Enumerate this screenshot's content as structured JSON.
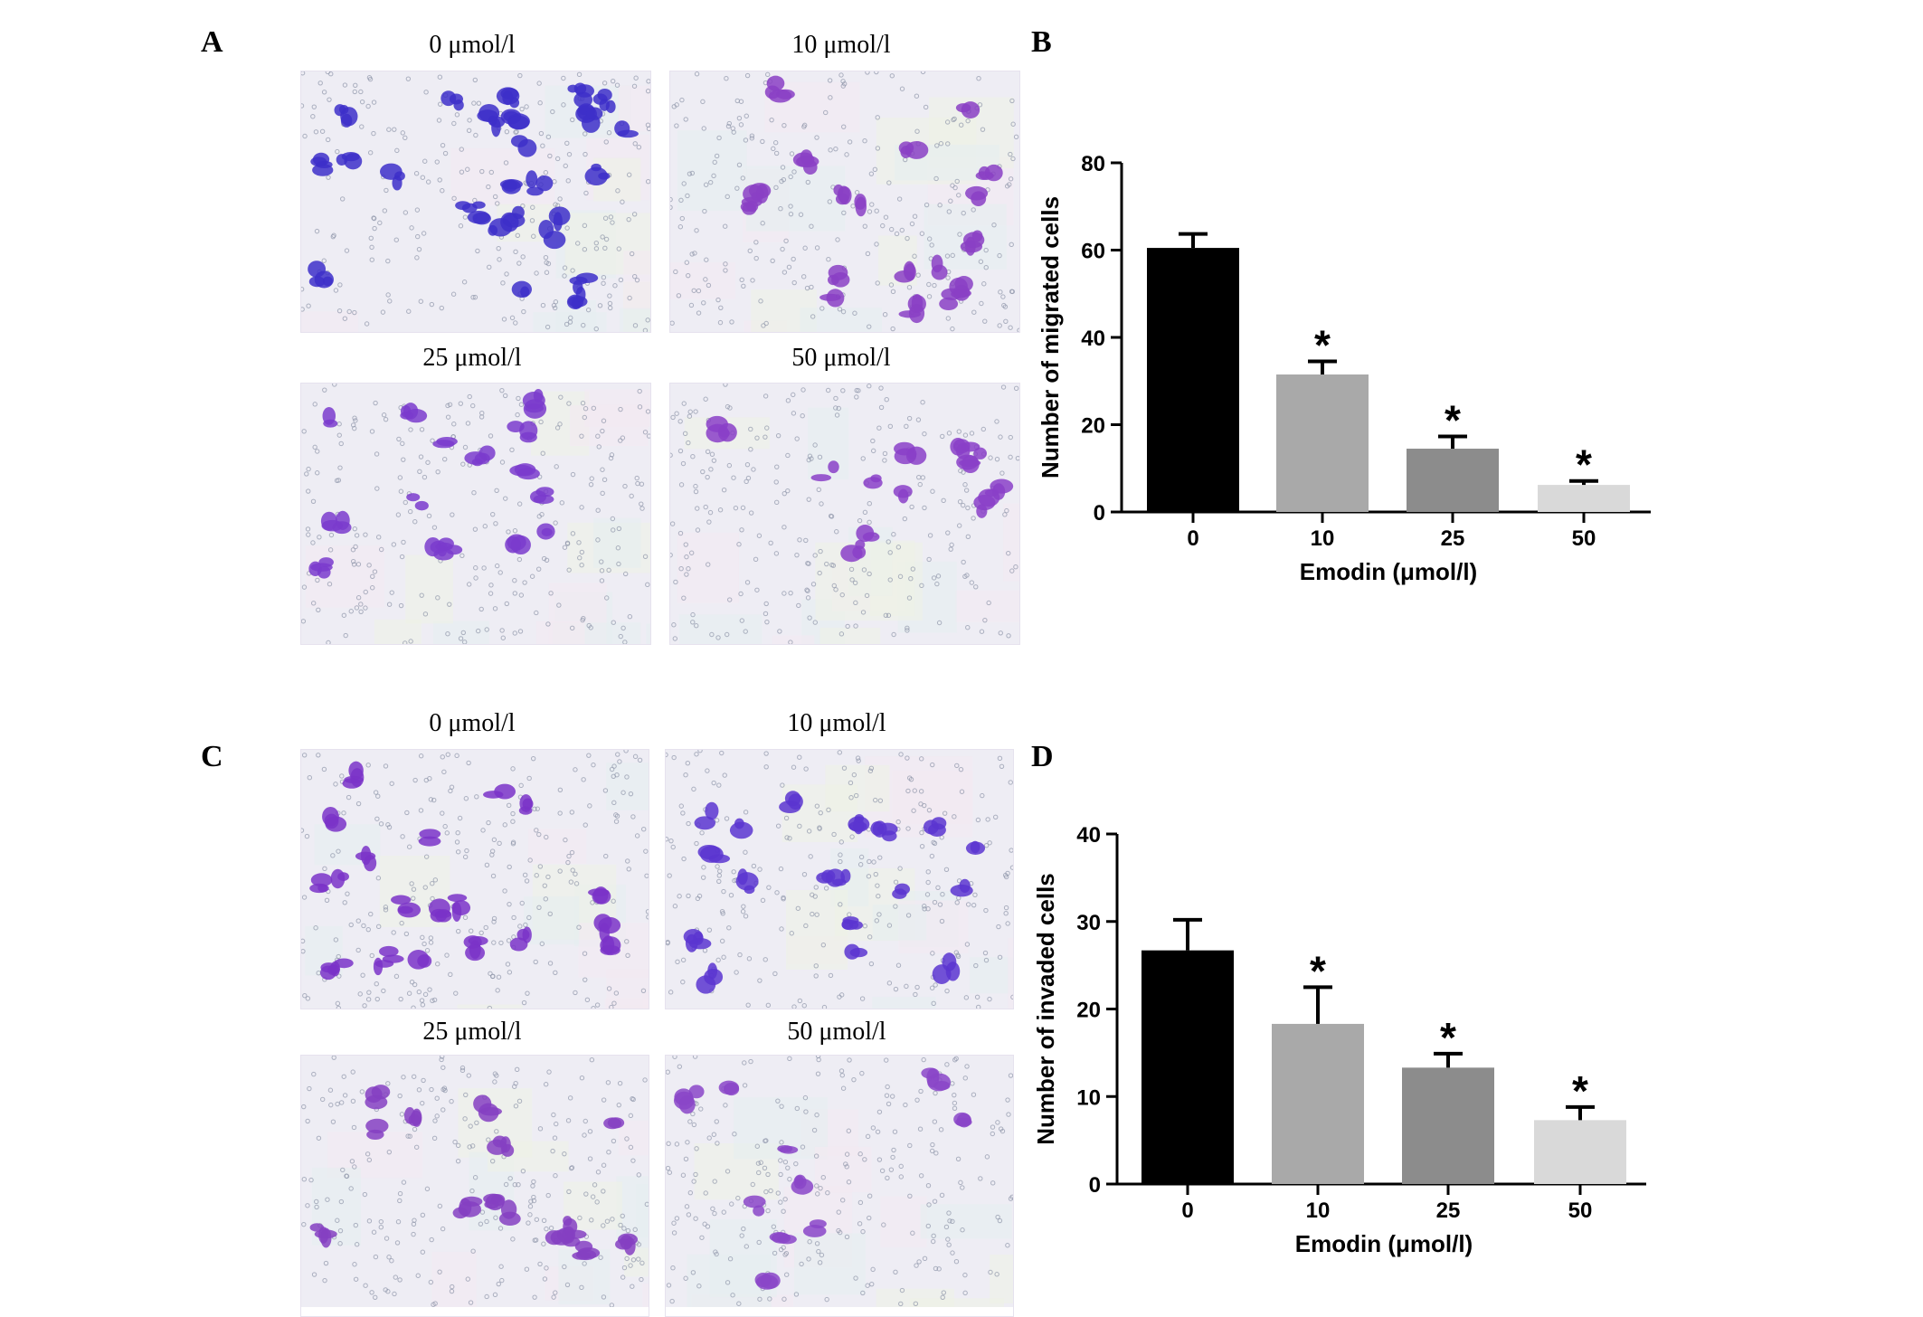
{
  "panel_letters": {
    "a": "A",
    "b": "B",
    "c": "C",
    "d": "D"
  },
  "migration_images": [
    {
      "label": "0 μmol/l",
      "stain": "#3d2fc9",
      "density": 1.0
    },
    {
      "label": "10 μmol/l",
      "stain": "#8a3fc4",
      "density": 0.55
    },
    {
      "label": "25 μmol/l",
      "stain": "#7a3bcc",
      "density": 0.4
    },
    {
      "label": "50 μmol/l",
      "stain": "#8a40c8",
      "density": 0.22
    }
  ],
  "invasion_images": [
    {
      "label": "0 μmol/l",
      "stain": "#7a33c8",
      "density": 0.7
    },
    {
      "label": "10 μmol/l",
      "stain": "#5a35d0",
      "density": 0.55
    },
    {
      "label": "25 μmol/l",
      "stain": "#8540c2",
      "density": 0.4
    },
    {
      "label": "50 μmol/l",
      "stain": "#8a45c8",
      "density": 0.2
    }
  ],
  "chart_data": [
    {
      "type": "bar",
      "panel": "B",
      "categories": [
        "0",
        "10",
        "25",
        "50"
      ],
      "values": [
        60.5,
        31.5,
        14.5,
        6.2
      ],
      "errors": [
        3.2,
        3.0,
        2.8,
        0.9
      ],
      "significance": [
        "",
        "*",
        "*",
        "*"
      ],
      "bar_colors": [
        "#000000",
        "#a9a9a9",
        "#8c8c8c",
        "#d9d9d9"
      ],
      "xlabel": "Emodin (μmol/l)",
      "ylabel": "Number of migrated cells",
      "ylim": [
        0,
        80
      ],
      "yticks": [
        0,
        20,
        40,
        60,
        80
      ],
      "grid": false
    },
    {
      "type": "bar",
      "panel": "D",
      "categories": [
        "0",
        "10",
        "25",
        "50"
      ],
      "values": [
        26.7,
        18.3,
        13.3,
        7.3
      ],
      "errors": [
        3.5,
        4.2,
        1.6,
        1.5
      ],
      "significance": [
        "",
        "*",
        "*",
        "*"
      ],
      "bar_colors": [
        "#000000",
        "#a9a9a9",
        "#8c8c8c",
        "#d9d9d9"
      ],
      "xlabel": "Emodin (μmol/l)",
      "ylabel": "Number of invaded cells",
      "ylim": [
        0,
        40
      ],
      "yticks": [
        0,
        10,
        20,
        30,
        40
      ],
      "grid": false
    }
  ]
}
